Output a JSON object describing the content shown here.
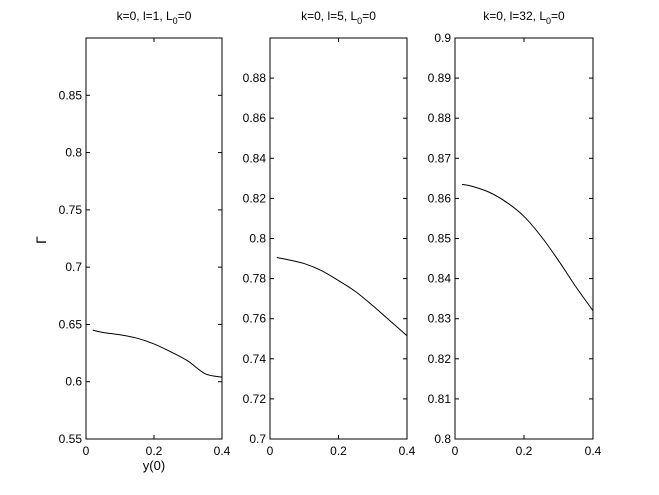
{
  "figure": {
    "ylabel": "Γ",
    "xlabel": "y(0)"
  },
  "chart_data": [
    {
      "type": "line",
      "title_main": "k=0, l=1, L",
      "title_sub": "0",
      "title_tail": "=0",
      "xlim": [
        0,
        0.4
      ],
      "ylim": [
        0.55,
        0.9
      ],
      "xticks": [
        0,
        0.2,
        0.4
      ],
      "xtick_labels": [
        "0",
        "0.2",
        "0.4"
      ],
      "yticks": [
        0.55,
        0.6,
        0.65,
        0.7,
        0.75,
        0.8,
        0.85
      ],
      "ytick_labels": [
        "0.55",
        "0.6",
        "0.65",
        "0.7",
        "0.75",
        "0.8",
        "0.85"
      ],
      "series": [
        {
          "x": [
            0.02,
            0.05,
            0.1,
            0.15,
            0.2,
            0.25,
            0.3,
            0.35,
            0.4
          ],
          "y": [
            0.645,
            0.643,
            0.641,
            0.638,
            0.633,
            0.626,
            0.618,
            0.607,
            0.604
          ]
        }
      ]
    },
    {
      "type": "line",
      "title_main": "k=0, l=5, L",
      "title_sub": "0",
      "title_tail": "=0",
      "xlim": [
        0,
        0.4
      ],
      "ylim": [
        0.7,
        0.9
      ],
      "xticks": [
        0,
        0.2,
        0.4
      ],
      "xtick_labels": [
        "0",
        "0.2",
        "0.4"
      ],
      "yticks": [
        0.7,
        0.72,
        0.74,
        0.76,
        0.78,
        0.8,
        0.82,
        0.84,
        0.86,
        0.88
      ],
      "ytick_labels": [
        "0.7",
        "0.72",
        "0.74",
        "0.76",
        "0.78",
        "0.8",
        "0.82",
        "0.84",
        "0.86",
        "0.88"
      ],
      "series": [
        {
          "x": [
            0.02,
            0.05,
            0.1,
            0.15,
            0.2,
            0.25,
            0.3,
            0.35,
            0.4
          ],
          "y": [
            0.7905,
            0.7895,
            0.7875,
            0.784,
            0.779,
            0.7735,
            0.7665,
            0.759,
            0.7515
          ]
        }
      ]
    },
    {
      "type": "line",
      "title_main": "k=0, l=32, L",
      "title_sub": "0",
      "title_tail": "=0",
      "xlim": [
        0,
        0.4
      ],
      "ylim": [
        0.8,
        0.9
      ],
      "xticks": [
        0,
        0.2,
        0.4
      ],
      "xtick_labels": [
        "0",
        "0.2",
        "0.4"
      ],
      "yticks": [
        0.8,
        0.81,
        0.82,
        0.83,
        0.84,
        0.85,
        0.86,
        0.87,
        0.88,
        0.89,
        0.9
      ],
      "ytick_labels": [
        "0.8",
        "0.81",
        "0.82",
        "0.83",
        "0.84",
        "0.85",
        "0.86",
        "0.87",
        "0.88",
        "0.89",
        "0.9"
      ],
      "series": [
        {
          "x": [
            0.02,
            0.05,
            0.1,
            0.15,
            0.2,
            0.25,
            0.3,
            0.35,
            0.4
          ],
          "y": [
            0.8635,
            0.863,
            0.8615,
            0.859,
            0.8555,
            0.8505,
            0.8445,
            0.838,
            0.832
          ]
        }
      ]
    }
  ]
}
